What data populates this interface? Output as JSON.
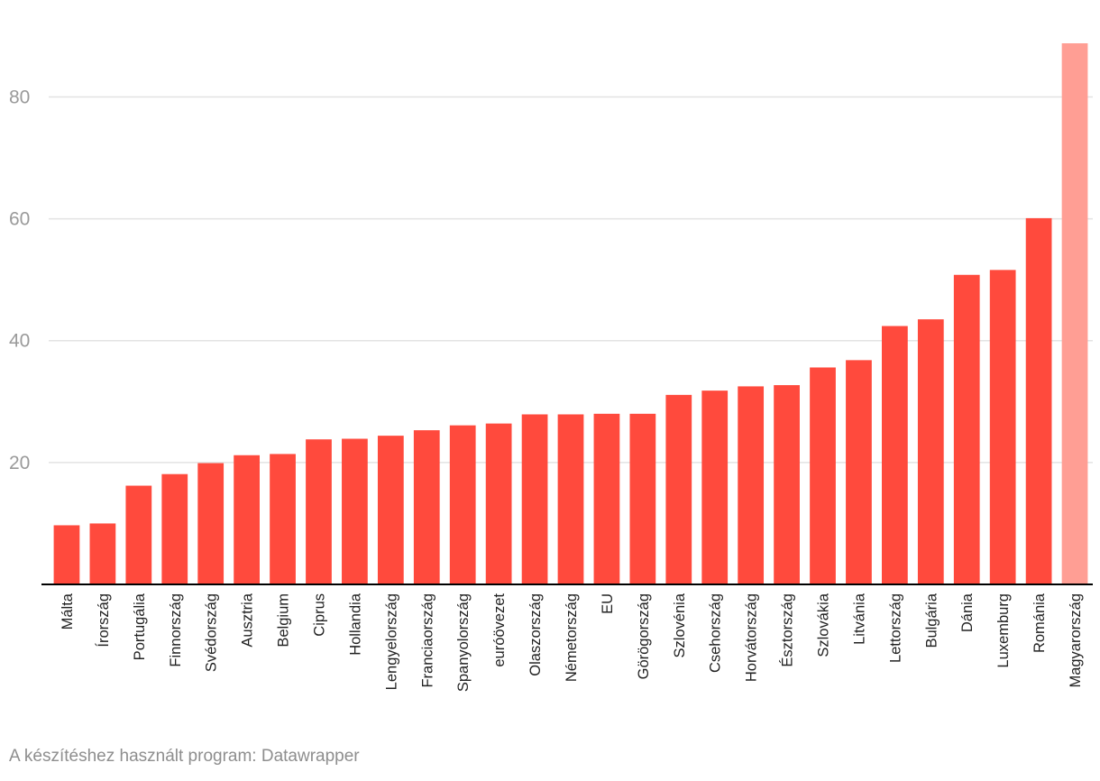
{
  "chart_data": {
    "type": "bar",
    "title": "",
    "xlabel": "",
    "ylabel": "",
    "ylim": [
      0,
      88.8
    ],
    "yticks": [
      20,
      40,
      60,
      80
    ],
    "grid": true,
    "categories": [
      "Málta",
      "Írország",
      "Portugália",
      "Finnország",
      "Svédország",
      "Ausztria",
      "Belgium",
      "Ciprus",
      "Hollandia",
      "Lengyelország",
      "Franciaország",
      "Spanyolország",
      "euróövezet",
      "Olaszország",
      "Németország",
      "EU",
      "Görögország",
      "Szlovénia",
      "Csehország",
      "Horvátország",
      "Észtország",
      "Szlovákia",
      "Litvánia",
      "Lettország",
      "Bulgária",
      "Dánia",
      "Luxemburg",
      "Románia",
      "Magyarország"
    ],
    "values": [
      9.7,
      10.0,
      16.2,
      18.1,
      19.9,
      21.2,
      21.4,
      23.8,
      23.9,
      24.4,
      25.3,
      26.1,
      26.4,
      27.9,
      27.9,
      28.0,
      28.0,
      31.1,
      31.8,
      32.5,
      32.7,
      35.6,
      36.8,
      42.4,
      43.5,
      50.8,
      51.6,
      60.1,
      88.8
    ],
    "highlight": "Magyarország",
    "colors": {
      "bar": "#ff4a3d",
      "highlight": "#ff9e94",
      "grid": "#e3e3e3",
      "axis": "#000000",
      "tick_text": "#9a9a9a",
      "category_text": "#222222"
    }
  },
  "footer": {
    "credit": "A készítéshez használt program: Datawrapper"
  }
}
